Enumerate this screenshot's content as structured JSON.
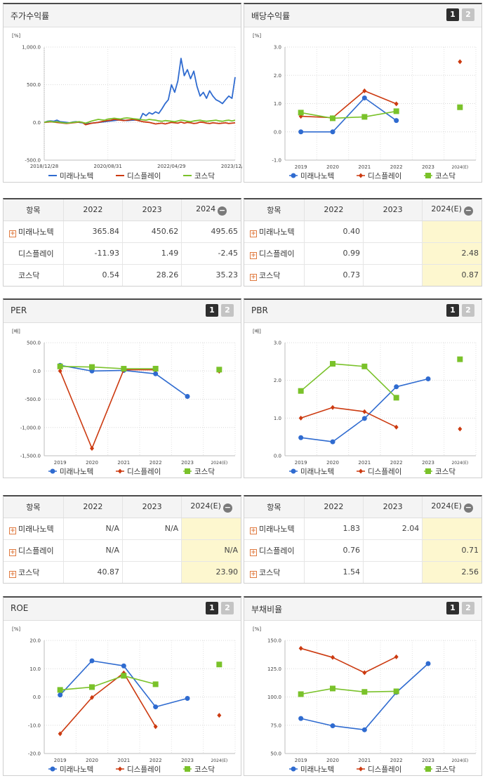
{
  "colors": {
    "mirae": "#2f6bd0",
    "display": "#cc3a10",
    "kosdaq": "#7ac22a"
  },
  "panels": [
    {
      "title": "주가수익률",
      "tabs": [],
      "chart_data": {
        "type": "line",
        "unit": "[%]",
        "ylim": [
          -500,
          1000
        ],
        "yticks": [
          "1,000.0",
          "500.0",
          "0.0",
          "-500.0"
        ],
        "ytick_values": [
          1000,
          500,
          0,
          -500
        ],
        "xticks": [
          "2018/12/28",
          "2020/08/31",
          "2022/04/29",
          "2023/12/28"
        ],
        "x_count": 61,
        "series": [
          {
            "name": "미래나노텍",
            "key": "mirae",
            "marker": "none",
            "values": [
              0,
              15,
              20,
              15,
              30,
              10,
              5,
              0,
              -5,
              5,
              10,
              0,
              -5,
              -20,
              -15,
              -10,
              -5,
              0,
              5,
              10,
              15,
              20,
              25,
              30,
              35,
              30,
              25,
              28,
              30,
              32,
              30,
              120,
              90,
              130,
              110,
              140,
              120,
              180,
              250,
              300,
              500,
              400,
              550,
              850,
              620,
              700,
              580,
              680,
              480,
              350,
              400,
              320,
              420,
              350,
              300,
              280,
              250,
              300,
              350,
              320,
              600
            ]
          },
          {
            "name": "디스플레이",
            "key": "display",
            "marker": "none",
            "values": [
              0,
              5,
              10,
              5,
              0,
              -5,
              -10,
              -15,
              -10,
              -5,
              0,
              5,
              0,
              -30,
              -20,
              -10,
              -5,
              0,
              10,
              20,
              25,
              30,
              40,
              35,
              30,
              25,
              30,
              35,
              40,
              30,
              20,
              10,
              5,
              0,
              -10,
              -20,
              -15,
              -10,
              -20,
              -10,
              0,
              -5,
              -10,
              5,
              -10,
              0,
              -5,
              -15,
              -10,
              5,
              0,
              -10,
              -15,
              -5,
              -10,
              -15,
              -10,
              -5,
              -15,
              -10,
              -5
            ]
          },
          {
            "name": "코스닥",
            "key": "kosdaq",
            "marker": "none",
            "values": [
              0,
              10,
              15,
              5,
              10,
              0,
              -5,
              -10,
              -5,
              0,
              5,
              10,
              0,
              -10,
              5,
              20,
              30,
              40,
              35,
              30,
              45,
              50,
              55,
              50,
              45,
              55,
              60,
              55,
              50,
              45,
              40,
              35,
              30,
              40,
              35,
              30,
              20,
              15,
              25,
              20,
              15,
              10,
              20,
              30,
              25,
              15,
              10,
              20,
              25,
              30,
              20,
              15,
              20,
              25,
              30,
              20,
              15,
              25,
              30,
              20,
              30
            ]
          }
        ]
      }
    },
    {
      "title": "배당수익률",
      "tabs": [
        "1",
        "2"
      ],
      "chart_data": {
        "type": "line",
        "unit": "[%]",
        "ylim": [
          -1,
          3
        ],
        "yticks": [
          "3.0",
          "2.0",
          "1.0",
          "0.0",
          "-1.0"
        ],
        "ytick_values": [
          3,
          2,
          1,
          0,
          -1
        ],
        "categories": [
          "2019",
          "2020",
          "2021",
          "2022",
          "2023",
          "2024(E)"
        ],
        "series": [
          {
            "name": "미래나노텍",
            "key": "mirae",
            "marker": "circle",
            "values": [
              0.0,
              0.0,
              1.2,
              0.4,
              null,
              null
            ]
          },
          {
            "name": "디스플레이",
            "key": "display",
            "marker": "diamond",
            "values": [
              0.55,
              0.5,
              1.45,
              0.99,
              null,
              2.48
            ]
          },
          {
            "name": "코스닥",
            "key": "kosdaq",
            "marker": "square",
            "values": [
              0.68,
              0.48,
              0.53,
              0.73,
              null,
              0.87
            ]
          }
        ]
      }
    },
    {
      "title": "PER",
      "tabs": [
        "1",
        "2"
      ],
      "chart_data": {
        "type": "line",
        "unit": "[배]",
        "ylim": [
          -1500,
          500
        ],
        "yticks": [
          "500.0",
          "0.0",
          "-500.0",
          "-1,000.0",
          "-1,500.0"
        ],
        "ytick_values": [
          500,
          0,
          -500,
          -1000,
          -1500
        ],
        "categories": [
          "2019",
          "2020",
          "2021",
          "2022",
          "2023",
          "2024(E)"
        ],
        "series": [
          {
            "name": "미래나노텍",
            "key": "mirae",
            "marker": "circle",
            "values": [
              100,
              0,
              10,
              -50,
              -450,
              null
            ]
          },
          {
            "name": "디스플레이",
            "key": "display",
            "marker": "diamond",
            "values": [
              0,
              -1370,
              20,
              20,
              null,
              -5
            ]
          },
          {
            "name": "코스닥",
            "key": "kosdaq",
            "marker": "square",
            "values": [
              80,
              70,
              40,
              40.87,
              null,
              23.9
            ]
          }
        ]
      }
    },
    {
      "title": "PBR",
      "tabs": [
        "1",
        "2"
      ],
      "chart_data": {
        "type": "line",
        "unit": "[배]",
        "ylim": [
          0,
          3
        ],
        "yticks": [
          "3.0",
          "2.0",
          "1.0",
          "0.0"
        ],
        "ytick_values": [
          3,
          2,
          1,
          0
        ],
        "categories": [
          "2019",
          "2020",
          "2021",
          "2022",
          "2023",
          "2024(E)"
        ],
        "series": [
          {
            "name": "미래나노텍",
            "key": "mirae",
            "marker": "circle",
            "values": [
              0.48,
              0.37,
              0.99,
              1.83,
              2.04,
              null
            ]
          },
          {
            "name": "디스플레이",
            "key": "display",
            "marker": "diamond",
            "values": [
              1.0,
              1.28,
              1.17,
              0.76,
              null,
              0.71
            ]
          },
          {
            "name": "코스닥",
            "key": "kosdaq",
            "marker": "square",
            "values": [
              1.72,
              2.44,
              2.37,
              1.54,
              null,
              2.56
            ]
          }
        ]
      }
    },
    {
      "title": "ROE",
      "tabs": [
        "1",
        "2"
      ],
      "chart_data": {
        "type": "line",
        "unit": "[%]",
        "ylim": [
          -20,
          20
        ],
        "yticks": [
          "20.0",
          "10.0",
          "0.0",
          "-10.0",
          "-20.0"
        ],
        "ytick_values": [
          20,
          10,
          0,
          -10,
          -20
        ],
        "categories": [
          "2019",
          "2020",
          "2021",
          "2022",
          "2023",
          "2024(E)"
        ],
        "series": [
          {
            "name": "미래나노텍",
            "key": "mirae",
            "marker": "circle",
            "values": [
              0.7,
              12.8,
              11.0,
              -3.5,
              -0.5,
              null
            ]
          },
          {
            "name": "디스플레이",
            "key": "display",
            "marker": "diamond",
            "values": [
              -13.0,
              -0.2,
              8.5,
              -10.5,
              null,
              -6.5
            ]
          },
          {
            "name": "코스닥",
            "key": "kosdaq",
            "marker": "square",
            "values": [
              2.5,
              3.5,
              7.5,
              4.5,
              null,
              11.5
            ]
          }
        ]
      }
    },
    {
      "title": "부채비율",
      "tabs": [
        "1",
        "2"
      ],
      "chart_data": {
        "type": "line",
        "unit": "[%]",
        "ylim": [
          50,
          150
        ],
        "yticks": [
          "150.0",
          "125.0",
          "100.0",
          "75.0",
          "50.0"
        ],
        "ytick_values": [
          150,
          125,
          100,
          75,
          50
        ],
        "categories": [
          "2019",
          "2020",
          "2021",
          "2022",
          "2023",
          "2024(E)"
        ],
        "series": [
          {
            "name": "미래나노텍",
            "key": "mirae",
            "marker": "circle",
            "values": [
              81,
              74.5,
              71,
              104,
              129.5,
              null
            ]
          },
          {
            "name": "디스플레이",
            "key": "display",
            "marker": "diamond",
            "values": [
              143,
              135,
              121.5,
              135.5,
              null,
              null
            ]
          },
          {
            "name": "코스닥",
            "key": "kosdaq",
            "marker": "square",
            "values": [
              102.5,
              107.5,
              104.5,
              105,
              null,
              null
            ]
          }
        ]
      }
    }
  ],
  "tables": [
    {
      "headers": [
        "항목",
        "2022",
        "2023",
        "2024"
      ],
      "header_icon": "minus-circle-icon",
      "rows": [
        {
          "label": "미래나노텍",
          "expand": true,
          "cells": [
            "365.84",
            "450.62",
            "495.65"
          ]
        },
        {
          "label": "디스플레이",
          "expand": false,
          "cells": [
            "-11.93",
            "1.49",
            "-2.45"
          ]
        },
        {
          "label": "코스닥",
          "expand": false,
          "cells": [
            "0.54",
            "28.26",
            "35.23"
          ]
        }
      ]
    },
    {
      "headers": [
        "항목",
        "2022",
        "2023",
        "2024(E)"
      ],
      "header_icon": "minus-circle-icon",
      "rows": [
        {
          "label": "미래나노텍",
          "expand": true,
          "cells": [
            "0.40",
            "",
            ""
          ]
        },
        {
          "label": "디스플레이",
          "expand": true,
          "cells": [
            "0.99",
            "",
            "2.48"
          ]
        },
        {
          "label": "코스닥",
          "expand": true,
          "cells": [
            "0.73",
            "",
            "0.87"
          ]
        }
      ]
    },
    {
      "headers": [
        "항목",
        "2022",
        "2023",
        "2024(E)"
      ],
      "header_icon": "minus-circle-icon",
      "rows": [
        {
          "label": "미래나노텍",
          "expand": true,
          "cells": [
            "N/A",
            "N/A",
            ""
          ]
        },
        {
          "label": "디스플레이",
          "expand": true,
          "cells": [
            "N/A",
            "",
            "N/A"
          ]
        },
        {
          "label": "코스닥",
          "expand": true,
          "cells": [
            "40.87",
            "",
            "23.90"
          ]
        }
      ]
    },
    {
      "headers": [
        "항목",
        "2022",
        "2023",
        "2024(E)"
      ],
      "header_icon": "minus-circle-icon",
      "rows": [
        {
          "label": "미래나노텍",
          "expand": true,
          "cells": [
            "1.83",
            "2.04",
            ""
          ]
        },
        {
          "label": "디스플레이",
          "expand": true,
          "cells": [
            "0.76",
            "",
            "0.71"
          ]
        },
        {
          "label": "코스닥",
          "expand": true,
          "cells": [
            "1.54",
            "",
            "2.56"
          ]
        }
      ]
    }
  ]
}
